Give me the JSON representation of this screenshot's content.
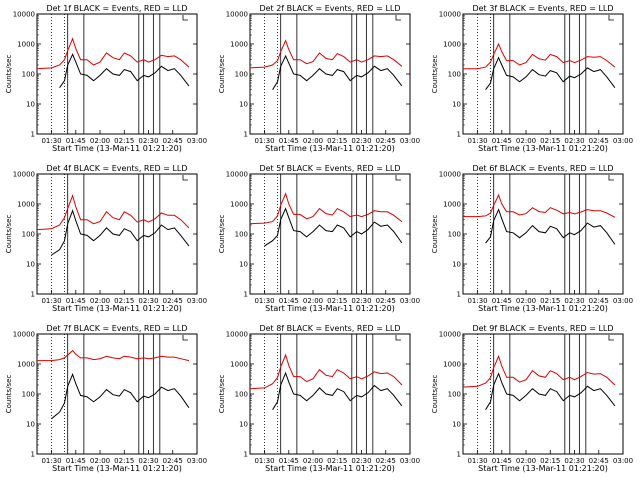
{
  "figure": {
    "ylabel": "Counts/sec",
    "xlabel": "Start Time (13-Mar-11 01:21:20)"
  },
  "colors": {
    "events": "#000000",
    "lld": "#dd0000",
    "axes": "#000000"
  },
  "chart_data": [
    {
      "type": "line",
      "title": "Det 1f BLACK = Events, RED = LLD",
      "xlabel": "Start Time (13-Mar-11 01:21:20)",
      "ylabel": "Counts/sec",
      "x_ticks": [
        "01:30",
        "01:45",
        "02:00",
        "02:15",
        "02:30",
        "02:45",
        "03:00"
      ],
      "y_ticks": [
        "1",
        "10",
        "100",
        "1000",
        "10000"
      ],
      "ylim": [
        1,
        10000
      ],
      "yscale": "log",
      "x": [
        "01:21",
        "01:30",
        "01:35",
        "01:38",
        "01:40",
        "01:43",
        "01:45",
        "01:48",
        "01:52",
        "01:56",
        "02:00",
        "02:04",
        "02:08",
        "02:12",
        "02:15",
        "02:19",
        "02:23",
        "02:27",
        "02:30",
        "02:34",
        "02:38",
        "02:42",
        "02:46",
        "02:50",
        "02:55"
      ],
      "series": [
        {
          "name": "LLD",
          "values": [
            150,
            160,
            200,
            300,
            600,
            1500,
            700,
            300,
            300,
            200,
            250,
            500,
            350,
            300,
            500,
            400,
            250,
            300,
            250,
            300,
            420,
            380,
            400,
            300,
            170
          ]
        },
        {
          "name": "Events",
          "values": [
            null,
            null,
            35,
            60,
            200,
            450,
            250,
            100,
            90,
            60,
            90,
            150,
            100,
            90,
            140,
            120,
            60,
            90,
            80,
            110,
            180,
            130,
            150,
            90,
            40
          ]
        }
      ]
    },
    {
      "type": "line",
      "title": "Det 2f BLACK = Events, RED = LLD",
      "xlabel": "Start Time (13-Mar-11 01:21:20)",
      "ylabel": "Counts/sec",
      "x_ticks": [
        "01:30",
        "01:45",
        "02:00",
        "02:15",
        "02:30",
        "02:45",
        "03:00"
      ],
      "y_ticks": [
        "1",
        "10",
        "100",
        "1000",
        "10000"
      ],
      "ylim": [
        1,
        10000
      ],
      "yscale": "log",
      "x": [
        "01:21",
        "01:30",
        "01:35",
        "01:38",
        "01:40",
        "01:43",
        "01:45",
        "01:48",
        "01:52",
        "01:56",
        "02:00",
        "02:04",
        "02:08",
        "02:12",
        "02:15",
        "02:19",
        "02:23",
        "02:27",
        "02:30",
        "02:34",
        "02:38",
        "02:42",
        "02:46",
        "02:50",
        "02:55"
      ],
      "series": [
        {
          "name": "LLD",
          "values": [
            160,
            170,
            200,
            280,
            550,
            1300,
            650,
            300,
            300,
            220,
            260,
            500,
            330,
            300,
            480,
            380,
            250,
            300,
            250,
            300,
            400,
            380,
            400,
            300,
            180
          ]
        },
        {
          "name": "Events",
          "values": [
            null,
            null,
            30,
            55,
            180,
            400,
            230,
            100,
            90,
            60,
            90,
            150,
            100,
            90,
            140,
            120,
            60,
            90,
            80,
            110,
            180,
            130,
            150,
            90,
            40
          ]
        }
      ]
    },
    {
      "type": "line",
      "title": "Det 3f BLACK = Events, RED = LLD",
      "xlabel": "Start Time (13-Mar-11 01:21:20)",
      "ylabel": "Counts/sec",
      "x_ticks": [
        "01:30",
        "01:45",
        "02:00",
        "02:15",
        "02:30",
        "02:45",
        "03:00"
      ],
      "y_ticks": [
        "1",
        "10",
        "100",
        "1000",
        "10000"
      ],
      "ylim": [
        1,
        10000
      ],
      "yscale": "log",
      "x": [
        "01:21",
        "01:30",
        "01:35",
        "01:38",
        "01:40",
        "01:43",
        "01:45",
        "01:48",
        "01:52",
        "01:56",
        "02:00",
        "02:04",
        "02:08",
        "02:12",
        "02:15",
        "02:19",
        "02:23",
        "02:27",
        "02:30",
        "02:34",
        "02:38",
        "02:42",
        "02:46",
        "02:50",
        "02:55"
      ],
      "series": [
        {
          "name": "LLD",
          "values": [
            150,
            150,
            170,
            250,
            450,
            1000,
            550,
            280,
            280,
            200,
            240,
            450,
            320,
            290,
            450,
            380,
            240,
            280,
            240,
            290,
            380,
            360,
            380,
            280,
            170
          ]
        },
        {
          "name": "Events",
          "values": [
            null,
            null,
            30,
            50,
            150,
            350,
            200,
            90,
            80,
            55,
            80,
            140,
            95,
            85,
            130,
            110,
            55,
            85,
            75,
            100,
            160,
            120,
            140,
            80,
            35
          ]
        }
      ]
    },
    {
      "type": "line",
      "title": "Det 4f BLACK = Events, RED = LLD",
      "xlabel": "Start Time (13-Mar-11 01:21:20)",
      "ylabel": "Counts/sec",
      "x_ticks": [
        "01:30",
        "01:45",
        "02:00",
        "02:15",
        "02:30",
        "02:45",
        "03:00"
      ],
      "y_ticks": [
        "1",
        "10",
        "100",
        "1000",
        "10000"
      ],
      "ylim": [
        1,
        10000
      ],
      "yscale": "log",
      "x": [
        "01:21",
        "01:30",
        "01:35",
        "01:38",
        "01:40",
        "01:43",
        "01:45",
        "01:48",
        "01:52",
        "01:56",
        "02:00",
        "02:04",
        "02:08",
        "02:12",
        "02:15",
        "02:19",
        "02:23",
        "02:27",
        "02:30",
        "02:34",
        "02:38",
        "02:42",
        "02:46",
        "02:50",
        "02:55"
      ],
      "series": [
        {
          "name": "LLD",
          "values": [
            140,
            150,
            200,
            350,
            700,
            1900,
            800,
            300,
            300,
            220,
            260,
            550,
            350,
            300,
            550,
            420,
            250,
            300,
            250,
            320,
            500,
            420,
            420,
            300,
            160
          ]
        },
        {
          "name": "Events",
          "values": [
            null,
            20,
            30,
            60,
            220,
            600,
            280,
            100,
            90,
            60,
            90,
            160,
            100,
            90,
            150,
            120,
            60,
            90,
            80,
            110,
            200,
            140,
            160,
            90,
            40
          ]
        }
      ]
    },
    {
      "type": "line",
      "title": "Det 5f BLACK = Events, RED = LLD",
      "xlabel": "Start Time (13-Mar-11 01:21:20)",
      "ylabel": "Counts/sec",
      "x_ticks": [
        "01:30",
        "01:45",
        "02:00",
        "02:15",
        "02:30",
        "02:45",
        "03:00"
      ],
      "y_ticks": [
        "1",
        "10",
        "100",
        "1000",
        "10000"
      ],
      "ylim": [
        1,
        10000
      ],
      "yscale": "log",
      "x": [
        "01:21",
        "01:30",
        "01:35",
        "01:38",
        "01:40",
        "01:43",
        "01:45",
        "01:48",
        "01:52",
        "01:56",
        "02:00",
        "02:04",
        "02:08",
        "02:12",
        "02:15",
        "02:19",
        "02:23",
        "02:27",
        "02:30",
        "02:34",
        "02:38",
        "02:42",
        "02:46",
        "02:50",
        "02:55"
      ],
      "series": [
        {
          "name": "LLD",
          "values": [
            220,
            230,
            260,
            400,
            900,
            2200,
            1000,
            450,
            450,
            320,
            380,
            700,
            480,
            430,
            700,
            550,
            380,
            430,
            380,
            450,
            600,
            550,
            550,
            420,
            260
          ]
        },
        {
          "name": "Events",
          "values": [
            null,
            40,
            60,
            90,
            300,
            700,
            350,
            130,
            120,
            80,
            120,
            200,
            130,
            120,
            200,
            160,
            80,
            120,
            100,
            140,
            250,
            180,
            200,
            120,
            50
          ]
        }
      ]
    },
    {
      "type": "line",
      "title": "Det 6f BLACK = Events, RED = LLD",
      "xlabel": "Start Time (13-Mar-11 01:21:20)",
      "ylabel": "Counts/sec",
      "x_ticks": [
        "01:30",
        "01:45",
        "02:00",
        "02:15",
        "02:30",
        "02:45",
        "03:00"
      ],
      "y_ticks": [
        "1",
        "10",
        "100",
        "1000",
        "10000"
      ],
      "ylim": [
        1,
        10000
      ],
      "yscale": "log",
      "x": [
        "01:21",
        "01:30",
        "01:35",
        "01:38",
        "01:40",
        "01:43",
        "01:45",
        "01:48",
        "01:52",
        "01:56",
        "02:00",
        "02:04",
        "02:08",
        "02:12",
        "02:15",
        "02:19",
        "02:23",
        "02:27",
        "02:30",
        "02:34",
        "02:38",
        "02:42",
        "02:46",
        "02:50",
        "02:55"
      ],
      "series": [
        {
          "name": "LLD",
          "values": [
            380,
            380,
            400,
            500,
            900,
            2000,
            1000,
            550,
            550,
            430,
            480,
            750,
            560,
            520,
            750,
            620,
            470,
            520,
            470,
            540,
            650,
            600,
            600,
            500,
            360
          ]
        },
        {
          "name": "Events",
          "values": [
            null,
            null,
            50,
            80,
            280,
            650,
            320,
            120,
            110,
            75,
            110,
            190,
            120,
            110,
            180,
            150,
            75,
            110,
            95,
            130,
            230,
            170,
            190,
            110,
            45
          ]
        }
      ]
    },
    {
      "type": "line",
      "title": "Det 7f BLACK = Events, RED = LLD",
      "xlabel": "Start Time (13-Mar-11 01:21:20)",
      "ylabel": "Counts/sec",
      "x_ticks": [
        "01:30",
        "01:45",
        "02:00",
        "02:15",
        "02:30",
        "02:45",
        "03:00"
      ],
      "y_ticks": [
        "1",
        "10",
        "100",
        "1000",
        "10000"
      ],
      "ylim": [
        1,
        10000
      ],
      "yscale": "log",
      "x": [
        "01:21",
        "01:30",
        "01:35",
        "01:38",
        "01:40",
        "01:43",
        "01:45",
        "01:48",
        "01:52",
        "01:56",
        "02:00",
        "02:04",
        "02:08",
        "02:12",
        "02:15",
        "02:19",
        "02:23",
        "02:27",
        "02:30",
        "02:34",
        "02:38",
        "02:42",
        "02:46",
        "02:50",
        "02:55"
      ],
      "series": [
        {
          "name": "LLD",
          "values": [
            1300,
            1300,
            1400,
            1600,
            2000,
            2800,
            2100,
            1600,
            1600,
            1400,
            1500,
            1800,
            1600,
            1500,
            1800,
            1700,
            1500,
            1600,
            1500,
            1600,
            1800,
            1700,
            1700,
            1500,
            1300
          ]
        },
        {
          "name": "Events",
          "values": [
            null,
            15,
            25,
            50,
            180,
            450,
            220,
            90,
            80,
            55,
            80,
            140,
            95,
            85,
            140,
            110,
            55,
            85,
            75,
            100,
            170,
            130,
            150,
            85,
            35
          ]
        }
      ]
    },
    {
      "type": "line",
      "title": "Det 8f BLACK = Events, RED = LLD",
      "xlabel": "Start Time (13-Mar-11 01:21:20)",
      "ylabel": "Counts/sec",
      "x_ticks": [
        "01:30",
        "01:45",
        "02:00",
        "02:15",
        "02:30",
        "02:45",
        "03:00"
      ],
      "y_ticks": [
        "1",
        "10",
        "100",
        "1000",
        "10000"
      ],
      "ylim": [
        1,
        10000
      ],
      "yscale": "log",
      "x": [
        "01:21",
        "01:30",
        "01:35",
        "01:38",
        "01:40",
        "01:43",
        "01:45",
        "01:48",
        "01:52",
        "01:56",
        "02:00",
        "02:04",
        "02:08",
        "02:12",
        "02:15",
        "02:19",
        "02:23",
        "02:27",
        "02:30",
        "02:34",
        "02:38",
        "02:42",
        "02:46",
        "02:50",
        "02:55"
      ],
      "series": [
        {
          "name": "LLD",
          "values": [
            150,
            160,
            220,
            350,
            800,
            2000,
            900,
            380,
            380,
            260,
            320,
            650,
            420,
            380,
            650,
            500,
            320,
            380,
            320,
            400,
            550,
            480,
            500,
            380,
            200
          ]
        },
        {
          "name": "Events",
          "values": [
            null,
            null,
            30,
            55,
            200,
            500,
            250,
            100,
            90,
            60,
            90,
            160,
            100,
            90,
            150,
            120,
            60,
            90,
            80,
            110,
            190,
            130,
            150,
            90,
            40
          ]
        }
      ]
    },
    {
      "type": "line",
      "title": "Det 9f BLACK = Events, RED = LLD",
      "xlabel": "Start Time (13-Mar-11 01:21:20)",
      "ylabel": "Counts/sec",
      "x_ticks": [
        "01:30",
        "01:45",
        "02:00",
        "02:15",
        "02:30",
        "02:45",
        "03:00"
      ],
      "y_ticks": [
        "1",
        "10",
        "100",
        "1000",
        "10000"
      ],
      "ylim": [
        1,
        10000
      ],
      "yscale": "log",
      "x": [
        "01:21",
        "01:30",
        "01:35",
        "01:38",
        "01:40",
        "01:43",
        "01:45",
        "01:48",
        "01:52",
        "01:56",
        "02:00",
        "02:04",
        "02:08",
        "02:12",
        "02:15",
        "02:19",
        "02:23",
        "02:27",
        "02:30",
        "02:34",
        "02:38",
        "02:42",
        "02:46",
        "02:50",
        "02:55"
      ],
      "series": [
        {
          "name": "LLD",
          "values": [
            170,
            180,
            230,
            350,
            750,
            1800,
            850,
            360,
            360,
            250,
            300,
            600,
            400,
            360,
            600,
            480,
            300,
            360,
            300,
            380,
            520,
            460,
            480,
            360,
            200
          ]
        },
        {
          "name": "Events",
          "values": [
            null,
            null,
            30,
            55,
            200,
            480,
            240,
            100,
            90,
            60,
            90,
            150,
            100,
            90,
            150,
            120,
            60,
            90,
            80,
            110,
            180,
            130,
            150,
            90,
            40
          ]
        }
      ]
    }
  ]
}
